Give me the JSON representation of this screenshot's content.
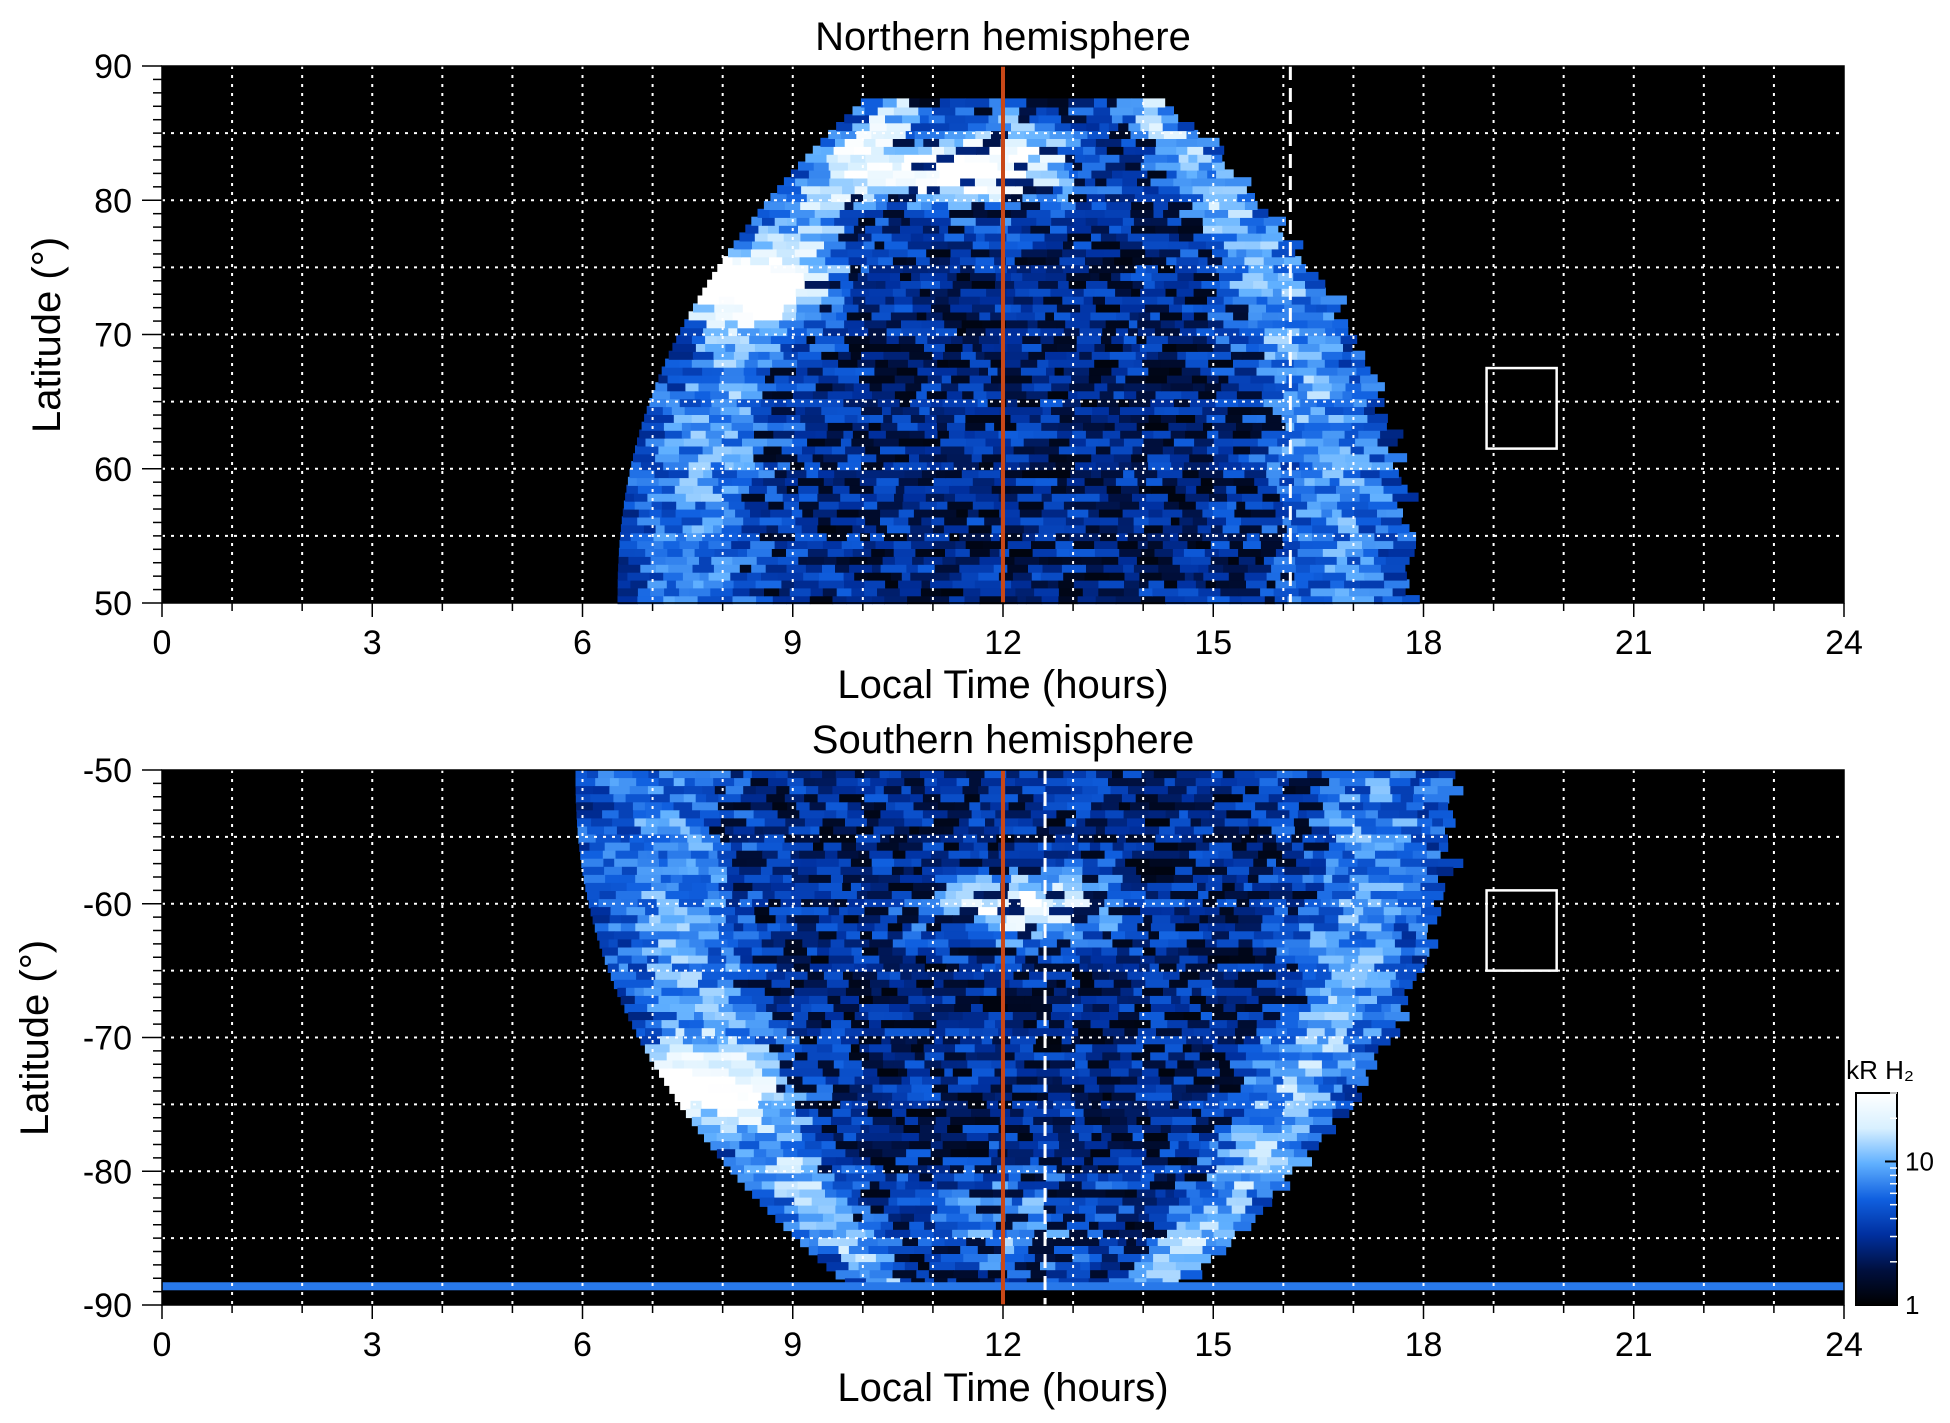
{
  "chart_data": [
    {
      "type": "heatmap",
      "title": "Northern hemisphere",
      "xlabel": "Local Time (hours)",
      "ylabel": "Latitude (°)",
      "xlim": [
        0,
        24
      ],
      "ylim": [
        50,
        90
      ],
      "x_ticks": [
        "0",
        "3",
        "6",
        "9",
        "12",
        "15",
        "18",
        "21",
        "24"
      ],
      "y_ticks": [
        "50",
        "60",
        "70",
        "80",
        "90"
      ],
      "grid": true,
      "grid_x_step": 1,
      "grid_y_step": 5,
      "noon_line_lt": 12,
      "dashed_line_lt": 16.1,
      "box": {
        "lt": [
          18.9,
          19.9
        ],
        "lat": [
          61.5,
          67.5
        ]
      },
      "emission_region": {
        "lt_min_at_low_lat": 6.5,
        "lt_max_at_low_lat": 17.7,
        "lat_max": 87
      },
      "bright_spots": [
        {
          "lt": 8.0,
          "lat": 73.5,
          "level": "high"
        },
        {
          "lt": 11.0,
          "lat": 82.0,
          "level": "high"
        }
      ]
    },
    {
      "type": "heatmap",
      "title": "Southern hemisphere",
      "xlabel": "Local Time (hours)",
      "ylabel": "Latitude (°)",
      "xlim": [
        0,
        24
      ],
      "ylim": [
        -90,
        -50
      ],
      "x_ticks": [
        "0",
        "3",
        "6",
        "9",
        "12",
        "15",
        "18",
        "21",
        "24"
      ],
      "y_ticks": [
        "-50",
        "-60",
        "-70",
        "-80",
        "-90"
      ],
      "grid": true,
      "grid_x_step": 1,
      "grid_y_step": 5,
      "noon_line_lt": 12,
      "dashed_line_lt": 12.6,
      "box": {
        "lt": [
          18.9,
          19.9
        ],
        "lat": [
          -65,
          -59
        ]
      },
      "emission_region": {
        "lt_min_at_low_lat": 5.9,
        "lt_max_at_low_lat": 18.3,
        "lat_min": -88
      },
      "bright_spots": [
        {
          "lt": 7.0,
          "lat": -73.5,
          "level": "high"
        },
        {
          "lt": 12.2,
          "lat": -60.0,
          "level": "high"
        }
      ]
    }
  ],
  "colorbar": {
    "label": "kR H₂",
    "ticks": [
      "1",
      "10"
    ],
    "range_kR": [
      1,
      30
    ],
    "scale": "log",
    "colors": [
      "#000000",
      "#001040",
      "#0030a0",
      "#1060e0",
      "#60b0ff",
      "#d8f0ff",
      "#ffffff"
    ]
  },
  "colors": {
    "noon_line": "#c84818",
    "background": "#000000",
    "grid": "#ffffff"
  }
}
